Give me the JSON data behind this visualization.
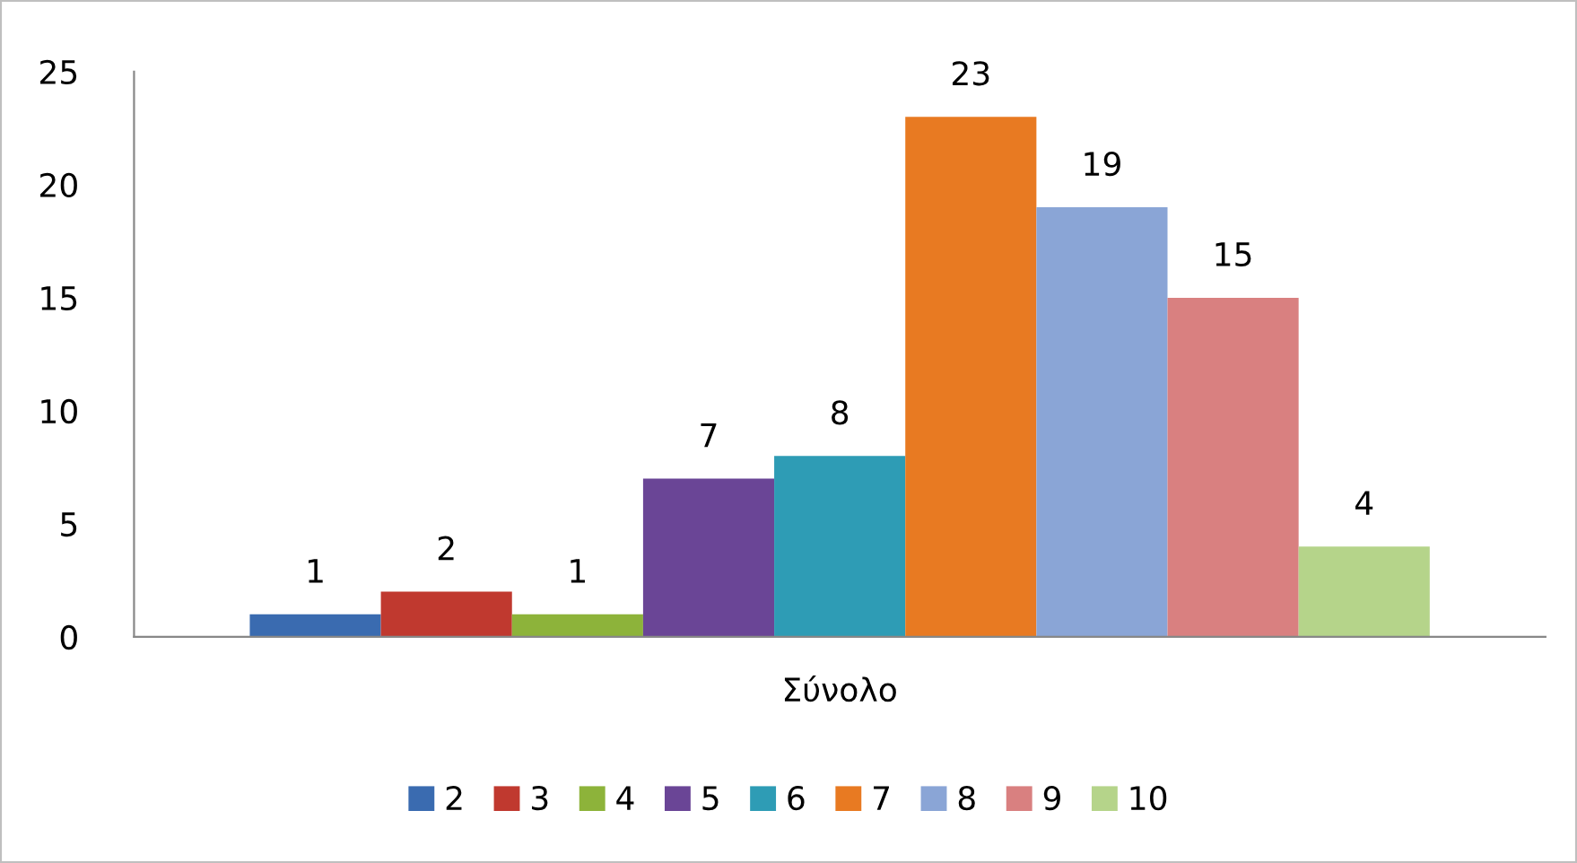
{
  "chart_data": {
    "type": "bar",
    "categories": [
      "Σύνολο"
    ],
    "series": [
      {
        "name": "2",
        "color": "#3a6bb0",
        "values": [
          1
        ]
      },
      {
        "name": "3",
        "color": "#c0392f",
        "values": [
          2
        ]
      },
      {
        "name": "4",
        "color": "#8db33a",
        "values": [
          1
        ]
      },
      {
        "name": "5",
        "color": "#6a4596",
        "values": [
          7
        ]
      },
      {
        "name": "6",
        "color": "#2e9cb5",
        "values": [
          8
        ]
      },
      {
        "name": "7",
        "color": "#e87a22",
        "values": [
          23
        ]
      },
      {
        "name": "8",
        "color": "#8aa5d6",
        "values": [
          19
        ]
      },
      {
        "name": "9",
        "color": "#d98080",
        "values": [
          15
        ]
      },
      {
        "name": "10",
        "color": "#b5d48a",
        "values": [
          4
        ]
      }
    ],
    "ylim": [
      0,
      25
    ],
    "yticks": [
      0,
      5,
      10,
      15,
      20,
      25
    ],
    "grid": false,
    "legend": "bottom",
    "data_labels": true
  }
}
